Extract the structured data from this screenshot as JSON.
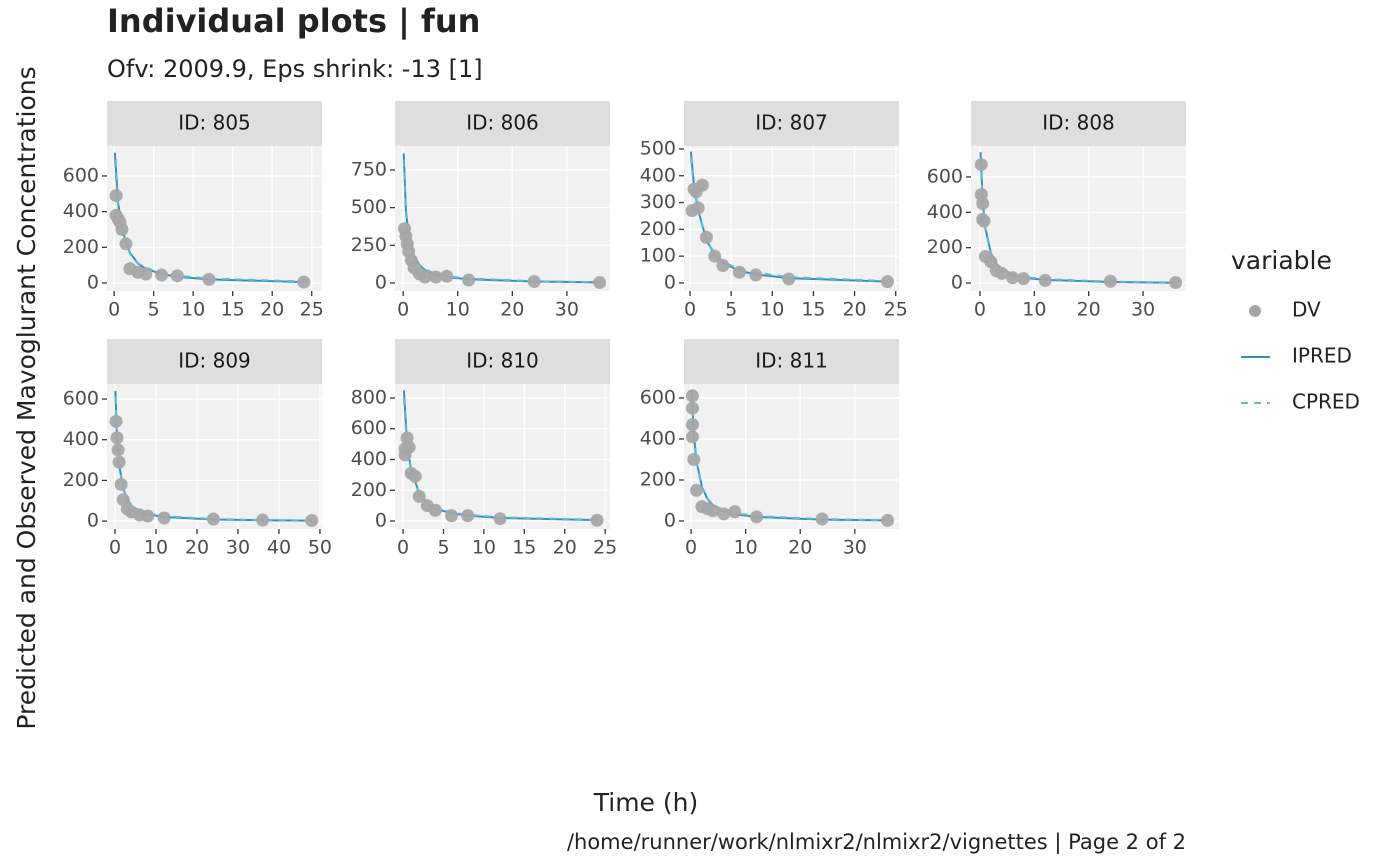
{
  "figure": {
    "title": "Individual plots | fun",
    "subtitle": "Ofv: 2009.9, Eps shrink: -13 [1]",
    "xlabel": "Time (h)",
    "ylabel": "Predicted and Observed Mavoglurant Concentrations",
    "caption": "/home/runner/work/nlmixr2/nlmixr2/vignettes | Page 2 of 2",
    "legend": {
      "title": "variable",
      "series": [
        {
          "name": "DV",
          "color": "#a6a6a6",
          "style": "point"
        },
        {
          "name": "IPRED",
          "color": "#3a8fb7",
          "style": "solid"
        },
        {
          "name": "CPRED",
          "color": "#5bbbd8",
          "style": "dashed"
        }
      ]
    }
  },
  "chart_data": [
    {
      "type": "line",
      "title": "ID: 805",
      "xlim": [
        -0.9,
        26.3
      ],
      "xticks": [
        0,
        5,
        10,
        15,
        20,
        25
      ],
      "ylim": [
        -45,
        768
      ],
      "yticks": [
        0,
        200,
        400,
        600
      ],
      "series": [
        {
          "x": [
            0.25,
            0.25,
            0.5,
            0.75,
            1,
            1.5,
            2,
            3,
            4,
            6,
            8,
            12,
            24
          ],
          "values": [
            490,
            380,
            360,
            340,
            300,
            220,
            80,
            60,
            50,
            45,
            40,
            20,
            5
          ]
        },
        {
          "x": [
            0.1,
            0.5,
            1,
            2,
            3,
            4,
            6,
            8,
            12,
            24
          ],
          "values": [
            730,
            450,
            300,
            170,
            110,
            80,
            50,
            35,
            20,
            5
          ]
        },
        {
          "x": [
            0.1,
            0.5,
            1,
            2,
            3,
            4,
            6,
            8,
            12,
            24
          ],
          "values": [
            690,
            430,
            290,
            165,
            110,
            85,
            55,
            40,
            25,
            8
          ]
        }
      ]
    },
    {
      "type": "line",
      "title": "ID: 806",
      "xlim": [
        -1.5,
        37.9
      ],
      "xticks": [
        0,
        10,
        20,
        30
      ],
      "ylim": [
        -53,
        909
      ],
      "yticks": [
        0,
        250,
        500,
        750
      ],
      "series": [
        {
          "x": [
            0.25,
            0.5,
            0.75,
            1,
            1.5,
            2,
            3,
            4,
            6,
            8,
            12,
            24,
            36
          ],
          "values": [
            360,
            310,
            260,
            210,
            150,
            100,
            60,
            40,
            40,
            45,
            20,
            10,
            3
          ]
        },
        {
          "x": [
            0.1,
            0.5,
            1,
            2,
            3,
            4,
            6,
            8,
            12,
            24,
            36
          ],
          "values": [
            860,
            480,
            320,
            180,
            120,
            85,
            55,
            40,
            25,
            10,
            4
          ]
        },
        {
          "x": [
            0.1,
            0.5,
            1,
            2,
            3,
            4,
            6,
            8,
            12,
            24,
            36
          ],
          "values": [
            820,
            460,
            310,
            175,
            120,
            90,
            60,
            45,
            30,
            12,
            5
          ]
        }
      ]
    },
    {
      "type": "line",
      "title": "ID: 807",
      "xlim": [
        -0.73,
        25.4
      ],
      "xticks": [
        0,
        5,
        10,
        15,
        20,
        25
      ],
      "ylim": [
        -30,
        511
      ],
      "yticks": [
        0,
        100,
        200,
        300,
        400,
        500
      ],
      "series": [
        {
          "x": [
            0.25,
            0.5,
            0.75,
            1,
            1.5,
            2,
            3,
            4,
            6,
            8,
            12,
            24
          ],
          "values": [
            270,
            350,
            340,
            280,
            365,
            170,
            100,
            65,
            40,
            30,
            15,
            5
          ]
        },
        {
          "x": [
            0.1,
            0.5,
            1,
            2,
            3,
            4,
            6,
            8,
            12,
            24
          ],
          "values": [
            490,
            360,
            270,
            160,
            105,
            75,
            45,
            32,
            18,
            5
          ]
        },
        {
          "x": [
            0.1,
            0.5,
            1,
            2,
            3,
            4,
            6,
            8,
            12,
            24
          ],
          "values": [
            470,
            350,
            265,
            160,
            110,
            80,
            50,
            38,
            22,
            7
          ]
        }
      ]
    },
    {
      "type": "line",
      "title": "ID: 808",
      "xlim": [
        -1.65,
        37.9
      ],
      "xticks": [
        0,
        10,
        20,
        30
      ],
      "ylim": [
        -45,
        775
      ],
      "yticks": [
        0,
        200,
        400,
        600
      ],
      "series": [
        {
          "x": [
            0.25,
            0.25,
            0.5,
            0.5,
            0.75,
            1,
            2,
            3,
            4,
            6,
            8,
            12,
            24,
            36
          ],
          "values": [
            670,
            500,
            450,
            360,
            350,
            150,
            120,
            70,
            55,
            30,
            25,
            15,
            10,
            3
          ]
        },
        {
          "x": [
            0.1,
            0.5,
            1,
            2,
            3,
            4,
            6,
            8,
            12,
            24,
            36
          ],
          "values": [
            740,
            470,
            310,
            170,
            110,
            75,
            45,
            30,
            18,
            6,
            2
          ]
        },
        {
          "x": [
            0.1,
            0.5,
            1,
            2,
            3,
            4,
            6,
            8,
            12,
            24,
            36
          ],
          "values": [
            700,
            450,
            300,
            165,
            110,
            80,
            50,
            35,
            22,
            8,
            3
          ]
        }
      ]
    },
    {
      "type": "line",
      "title": "ID: 809",
      "xlim": [
        -1.95,
        50.5
      ],
      "xticks": [
        0,
        10,
        20,
        30,
        40,
        50
      ],
      "ylim": [
        -39,
        674
      ],
      "yticks": [
        0,
        200,
        400,
        600
      ],
      "series": [
        {
          "x": [
            0.25,
            0.5,
            0.75,
            1,
            1.5,
            2,
            3,
            4,
            6,
            8,
            12,
            24,
            36,
            48
          ],
          "values": [
            490,
            410,
            350,
            290,
            180,
            105,
            60,
            45,
            30,
            25,
            15,
            10,
            5,
            3
          ]
        },
        {
          "x": [
            0.1,
            0.5,
            1,
            2,
            3,
            4,
            6,
            8,
            12,
            24,
            36,
            48
          ],
          "values": [
            640,
            400,
            280,
            160,
            105,
            75,
            48,
            34,
            20,
            8,
            4,
            2
          ]
        },
        {
          "x": [
            0.1,
            0.5,
            1,
            2,
            3,
            4,
            6,
            8,
            12,
            24,
            36,
            48
          ],
          "values": [
            610,
            390,
            275,
            158,
            108,
            80,
            52,
            38,
            24,
            10,
            5,
            3
          ]
        }
      ]
    },
    {
      "type": "line",
      "title": "ID: 810",
      "xlim": [
        -1,
        25.6
      ],
      "xticks": [
        0,
        5,
        10,
        15,
        20,
        25
      ],
      "ylim": [
        -52,
        891
      ],
      "yticks": [
        0,
        200,
        400,
        600,
        800
      ],
      "series": [
        {
          "x": [
            0.25,
            0.25,
            0.5,
            0.75,
            1,
            1.5,
            2,
            3,
            4,
            6,
            8,
            12,
            24
          ],
          "values": [
            470,
            430,
            540,
            480,
            310,
            290,
            160,
            100,
            70,
            35,
            35,
            15,
            5
          ]
        },
        {
          "x": [
            0.1,
            0.5,
            1,
            2,
            3,
            4,
            6,
            8,
            12,
            24
          ],
          "values": [
            850,
            500,
            330,
            180,
            115,
            80,
            50,
            35,
            20,
            6
          ]
        },
        {
          "x": [
            0.1,
            0.5,
            1,
            2,
            3,
            4,
            6,
            8,
            12,
            24
          ],
          "values": [
            800,
            480,
            320,
            178,
            118,
            85,
            55,
            40,
            24,
            8
          ]
        }
      ]
    },
    {
      "type": "line",
      "title": "ID: 811",
      "xlim": [
        -1.3,
        38.1
      ],
      "xticks": [
        0,
        10,
        20,
        30
      ],
      "ylim": [
        -39,
        668
      ],
      "yticks": [
        0,
        200,
        400,
        600
      ],
      "series": [
        {
          "x": [
            0.25,
            0.25,
            0.25,
            0.25,
            0.5,
            1,
            2,
            3,
            4,
            6,
            8,
            12,
            24,
            36
          ],
          "values": [
            610,
            550,
            470,
            410,
            300,
            150,
            70,
            60,
            50,
            35,
            45,
            20,
            10,
            3
          ]
        },
        {
          "x": [
            0.1,
            0.5,
            1,
            2,
            3,
            4,
            6,
            8,
            12,
            24,
            36
          ],
          "values": [
            640,
            420,
            290,
            165,
            108,
            76,
            47,
            33,
            20,
            7,
            3
          ]
        },
        {
          "x": [
            0.1,
            0.5,
            1,
            2,
            3,
            4,
            6,
            8,
            12,
            24,
            36
          ],
          "values": [
            610,
            405,
            285,
            162,
            110,
            80,
            52,
            38,
            24,
            9,
            4
          ]
        }
      ]
    }
  ]
}
